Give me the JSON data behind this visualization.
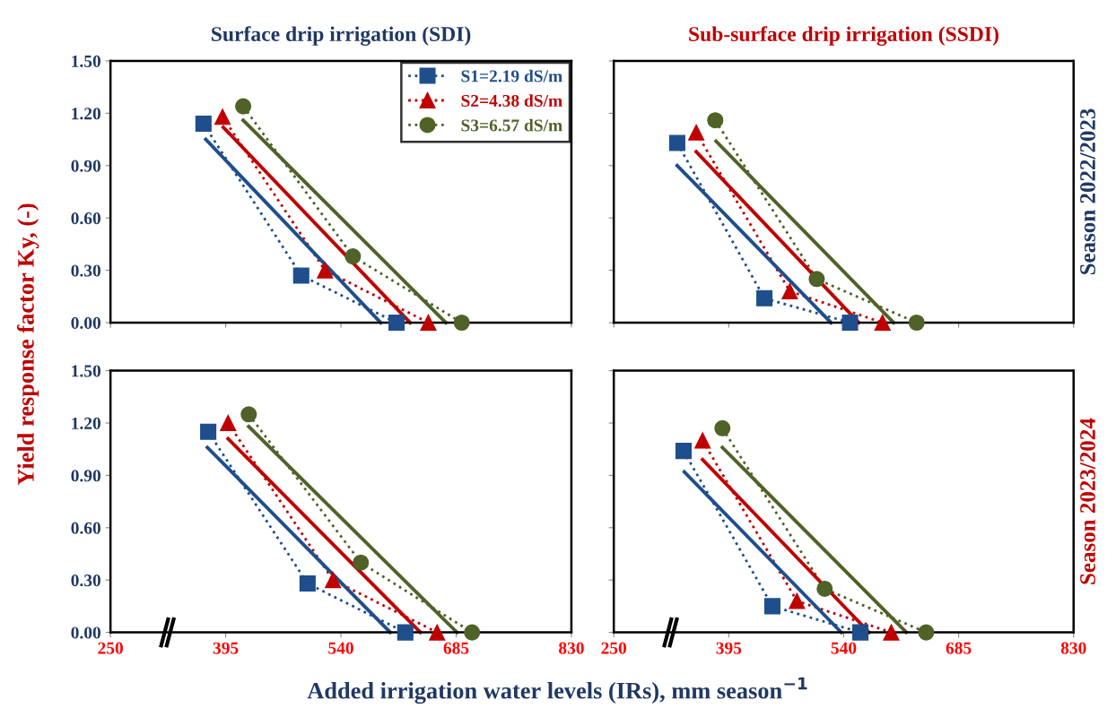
{
  "chart_data": [
    {
      "type": "line",
      "title": "Surface drip irrigation (SDI)",
      "ylabel": "Yield response factor Ky, (-)",
      "xlim": [
        250,
        830
      ],
      "ylim": [
        0,
        1.5
      ],
      "xticks": [
        {
          "value": 250,
          "label": null
        },
        {
          "value": 395,
          "label": null
        },
        {
          "value": 540,
          "label": null
        },
        {
          "value": 685,
          "label": null
        },
        {
          "value": 830,
          "label": null
        }
      ],
      "yticks": [
        {
          "value": 0,
          "label": "0.00"
        },
        {
          "value": 0.3,
          "label": "0.30"
        },
        {
          "value": 0.6,
          "label": "0.60"
        },
        {
          "value": 0.9,
          "label": "0.90"
        },
        {
          "value": 1.2,
          "label": "1.20"
        },
        {
          "value": 1.5,
          "label": "1.50"
        }
      ],
      "tick_labels": "y",
      "grid": false,
      "legend": "top right",
      "series": [
        {
          "name": "S1=2.19 dS/m",
          "color": "#1f4e8c",
          "marker": "square",
          "line_style": "dotted",
          "x": [
            367,
            490,
            610
          ],
          "values": [
            1.14,
            0.27,
            0
          ]
        },
        {
          "name": "S2=4.38 dS/m",
          "color": "#c00000",
          "marker": "triangle",
          "line_style": "dotted",
          "x": [
            391,
            520,
            650
          ],
          "values": [
            1.18,
            0.3,
            0
          ]
        },
        {
          "name": "S3=6.57 dS/m",
          "color": "#4f6228",
          "marker": "circle",
          "line_style": "dotted",
          "x": [
            417,
            555,
            692
          ],
          "values": [
            1.24,
            0.38,
            0
          ]
        },
        {
          "color": "#1f4e8c",
          "marker": "none",
          "line_style": "solid",
          "x": [
            370,
            590
          ],
          "values": [
            1.05,
            0
          ]
        },
        {
          "color": "#c00000",
          "marker": "none",
          "line_style": "solid",
          "x": [
            392,
            627
          ],
          "values": [
            1.12,
            0
          ]
        },
        {
          "color": "#4f6228",
          "marker": "none",
          "line_style": "solid",
          "x": [
            417,
            672
          ],
          "values": [
            1.16,
            0
          ]
        }
      ]
    },
    {
      "type": "line",
      "title": "Sub-surface drip irrigation (SSDI)",
      "y2label": "Season 2022/2023",
      "xlim": [
        250,
        830
      ],
      "ylim": [
        0,
        1.5
      ],
      "xticks": [
        {
          "value": 250,
          "label": null
        },
        {
          "value": 395,
          "label": null
        },
        {
          "value": 540,
          "label": null
        },
        {
          "value": 685,
          "label": null
        },
        {
          "value": 830,
          "label": null
        }
      ],
      "yticks": [
        {
          "value": 0,
          "label": null
        },
        {
          "value": 0.3,
          "label": null
        },
        {
          "value": 0.6,
          "label": null
        },
        {
          "value": 0.9,
          "label": null
        },
        {
          "value": 1.2,
          "label": null
        },
        {
          "value": 1.5,
          "label": null
        }
      ],
      "tick_labels": false,
      "grid": false,
      "series": [
        {
          "color": "#1f4e8c",
          "marker": "square",
          "line_style": "dotted",
          "x": [
            330,
            440,
            548
          ],
          "values": [
            1.03,
            0.14,
            0
          ]
        },
        {
          "color": "#c00000",
          "marker": "triangle",
          "line_style": "dotted",
          "x": [
            354,
            472,
            589
          ],
          "values": [
            1.09,
            0.18,
            0
          ]
        },
        {
          "color": "#4f6228",
          "marker": "circle",
          "line_style": "dotted",
          "x": [
            378,
            506,
            632
          ],
          "values": [
            1.16,
            0.25,
            0
          ]
        },
        {
          "color": "#1f4e8c",
          "marker": "none",
          "line_style": "solid",
          "x": [
            330,
            524
          ],
          "values": [
            0.9,
            0
          ]
        },
        {
          "color": "#c00000",
          "marker": "none",
          "line_style": "solid",
          "x": [
            354,
            559
          ],
          "values": [
            0.98,
            0
          ]
        },
        {
          "color": "#4f6228",
          "marker": "none",
          "line_style": "solid",
          "x": [
            379,
            603
          ],
          "values": [
            1.04,
            0
          ]
        }
      ]
    },
    {
      "type": "line",
      "xlabel": "Added irrigation water levels (IRs), mm season$^{−1}$",
      "xlim": [
        250,
        830
      ],
      "ylim": [
        0,
        1.5
      ],
      "xticks": [
        250,
        395,
        540,
        685,
        830
      ],
      "yticks": [
        {
          "value": 0,
          "label": "0.00"
        },
        {
          "value": 0.3,
          "label": "0.30"
        },
        {
          "value": 0.6,
          "label": "0.60"
        },
        {
          "value": 0.9,
          "label": "0.90"
        },
        {
          "value": 1.2,
          "label": "1.20"
        },
        {
          "value": 1.5,
          "label": "1.50"
        }
      ],
      "grid": false,
      "series": [
        {
          "color": "#1f4e8c",
          "marker": "square",
          "line_style": "dotted",
          "x": [
            373,
            498,
            621
          ],
          "values": [
            1.15,
            0.28,
            0
          ]
        },
        {
          "color": "#c00000",
          "marker": "triangle",
          "line_style": "dotted",
          "x": [
            398,
            530,
            661
          ],
          "values": [
            1.2,
            0.3,
            0
          ]
        },
        {
          "color": "#4f6228",
          "marker": "circle",
          "line_style": "dotted",
          "x": [
            424,
            565,
            705
          ],
          "values": [
            1.25,
            0.4,
            0
          ]
        },
        {
          "color": "#1f4e8c",
          "marker": "none",
          "line_style": "solid",
          "x": [
            372,
            602
          ],
          "values": [
            1.06,
            0
          ]
        },
        {
          "color": "#c00000",
          "marker": "none",
          "line_style": "solid",
          "x": [
            398,
            640
          ],
          "values": [
            1.11,
            0
          ]
        },
        {
          "color": "#4f6228",
          "marker": "none",
          "line_style": "solid",
          "x": [
            424,
            686
          ],
          "values": [
            1.18,
            0
          ]
        }
      ]
    },
    {
      "type": "line",
      "y2label": "Season 2023/2024",
      "xlim": [
        250,
        830
      ],
      "ylim": [
        0,
        1.5
      ],
      "xticks": [
        250,
        395,
        540,
        685,
        830
      ],
      "yticks": [
        {
          "value": 0,
          "label": null
        },
        {
          "value": 0.3,
          "label": null
        },
        {
          "value": 0.6,
          "label": null
        },
        {
          "value": 0.9,
          "label": null
        },
        {
          "value": 1.2,
          "label": null
        },
        {
          "value": 1.5,
          "label": null
        }
      ],
      "tick_labels": "x",
      "grid": false,
      "series": [
        {
          "color": "#1f4e8c",
          "marker": "square",
          "line_style": "dotted",
          "x": [
            338,
            450,
            561
          ],
          "values": [
            1.04,
            0.15,
            0
          ]
        },
        {
          "color": "#c00000",
          "marker": "triangle",
          "line_style": "dotted",
          "x": [
            362,
            481,
            600
          ],
          "values": [
            1.1,
            0.18,
            0
          ]
        },
        {
          "color": "#4f6228",
          "marker": "circle",
          "line_style": "dotted",
          "x": [
            387,
            516,
            644
          ],
          "values": [
            1.17,
            0.25,
            0
          ]
        },
        {
          "color": "#1f4e8c",
          "marker": "none",
          "line_style": "solid",
          "x": [
            339,
            537
          ],
          "values": [
            0.92,
            0
          ]
        },
        {
          "color": "#c00000",
          "marker": "none",
          "line_style": "solid",
          "x": [
            362,
            572
          ],
          "values": [
            0.99,
            0
          ]
        },
        {
          "color": "#4f6228",
          "marker": "none",
          "line_style": "solid",
          "x": [
            387,
            619
          ],
          "values": [
            1.06,
            0
          ]
        }
      ]
    }
  ]
}
